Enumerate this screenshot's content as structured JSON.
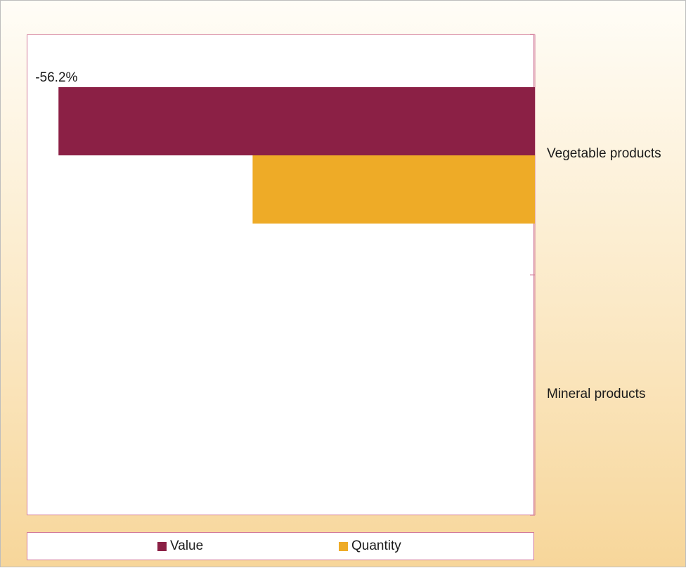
{
  "colors": {
    "value": "#8b2045",
    "quantity": "#eeab27",
    "axis": "#d27a9a"
  },
  "chart_data": {
    "type": "bar",
    "orientation": "horizontal",
    "categories": [
      "Vegetable products",
      "Mineral products"
    ],
    "series": [
      {
        "name": "Value",
        "values": [
          -56.2,
          null
        ]
      },
      {
        "name": "Quantity",
        "values": [
          -33.3,
          null
        ]
      }
    ],
    "data_labels": [
      "-56.2%"
    ],
    "xlim": [
      -60,
      0
    ],
    "legend_position": "bottom",
    "grid": false
  },
  "legend": {
    "items": [
      "Value",
      "Quantity"
    ]
  }
}
